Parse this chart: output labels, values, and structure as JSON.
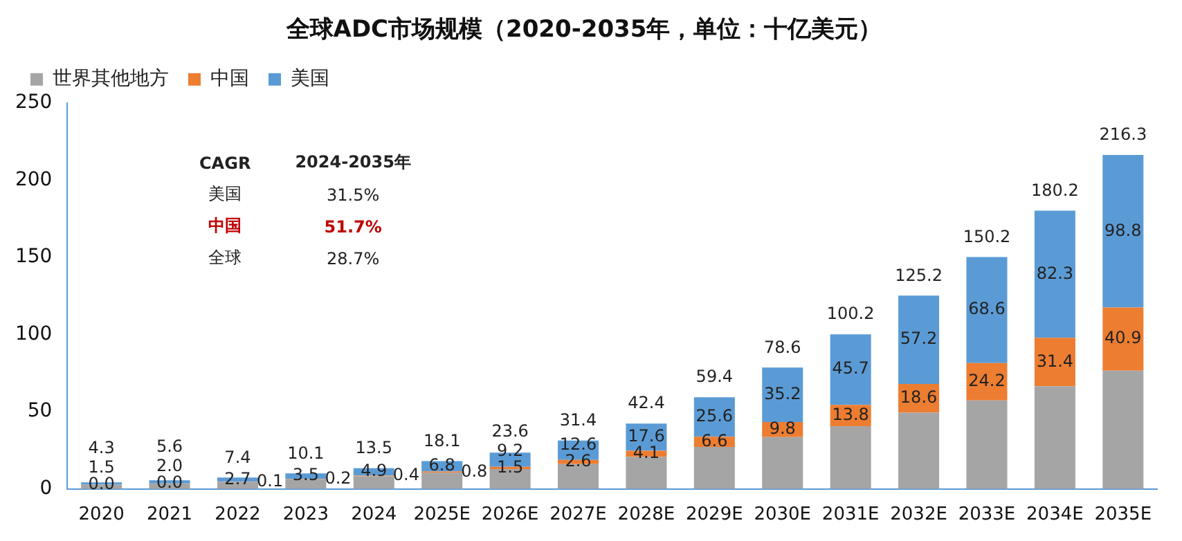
{
  "chart_data": {
    "type": "bar",
    "title": "全球ADC市场规模（2020-2035年，单位：十亿美元）",
    "categories": [
      "2020",
      "2021",
      "2022",
      "2023",
      "2024",
      "2025E",
      "2026E",
      "2027E",
      "2028E",
      "2029E",
      "2030E",
      "2031E",
      "2032E",
      "2033E",
      "2034E",
      "2035E"
    ],
    "stacked": true,
    "series": [
      {
        "name": "世界其他地方",
        "color": "#a5a5a5",
        "values": [
          2.8,
          3.6,
          4.6,
          6.4,
          8.2,
          10.5,
          12.9,
          16.2,
          20.7,
          27.2,
          33.6,
          40.7,
          49.4,
          57.4,
          66.5,
          76.6
        ]
      },
      {
        "name": "中国",
        "color": "#ed7d31",
        "values": [
          0.0,
          0.0,
          0.1,
          0.2,
          0.4,
          0.8,
          1.5,
          2.6,
          4.1,
          6.6,
          9.8,
          13.8,
          18.6,
          24.2,
          31.4,
          40.9
        ],
        "value_labels": [
          "0.0",
          "0.0",
          "0.1",
          "0.2",
          "0.4",
          "0.8",
          "1.5",
          "2.6",
          "4.1",
          "6.6",
          "9.8",
          "13.8",
          "18.6",
          "24.2",
          "31.4",
          "40.9"
        ]
      },
      {
        "name": "美国",
        "color": "#5b9bd5",
        "values": [
          1.5,
          2.0,
          2.7,
          3.5,
          4.9,
          6.8,
          9.2,
          12.6,
          17.6,
          25.6,
          35.2,
          45.7,
          57.2,
          68.6,
          82.3,
          98.8
        ],
        "value_labels": [
          "1.5",
          "2.0",
          "2.7",
          "3.5",
          "4.9",
          "6.8",
          "9.2",
          "12.6",
          "17.6",
          "25.6",
          "35.2",
          "45.7",
          "57.2",
          "68.6",
          "82.3",
          "98.8"
        ]
      }
    ],
    "totals": [
      "4.3",
      "5.6",
      "7.4",
      "10.1",
      "13.5",
      "18.1",
      "23.6",
      "31.4",
      "42.4",
      "59.4",
      "78.6",
      "100.2",
      "125.2",
      "150.2",
      "180.2",
      "216.3"
    ],
    "ylim": [
      0,
      250
    ],
    "yticks": [
      0,
      50,
      100,
      150,
      200,
      250
    ],
    "grid": false,
    "legend": "top left",
    "annotations": [
      "CAGR",
      "2024-2035年",
      "美国",
      "31.5%",
      "中国",
      "51.7%",
      "全球",
      "28.7%"
    ]
  }
}
